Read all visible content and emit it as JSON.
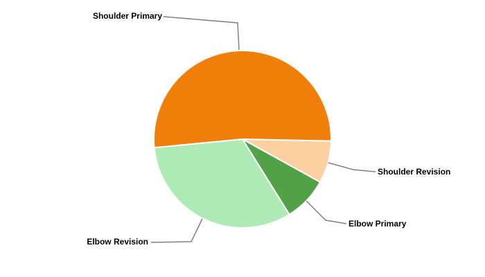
{
  "chart_data": {
    "type": "pie",
    "title": "",
    "slices": [
      {
        "label": "Shoulder Revision",
        "value": 7.7,
        "color": "#fdd0a2"
      },
      {
        "label": "Elbow Primary",
        "value": 8.1,
        "color": "#52a147"
      },
      {
        "label": "Elbow Revision",
        "value": 32.3,
        "color": "#aeeab6"
      },
      {
        "label": "Shoulder Primary",
        "value": 51.8,
        "color": "#f07f09"
      }
    ],
    "legend": "none",
    "labels": "outside-with-leader-lines"
  }
}
